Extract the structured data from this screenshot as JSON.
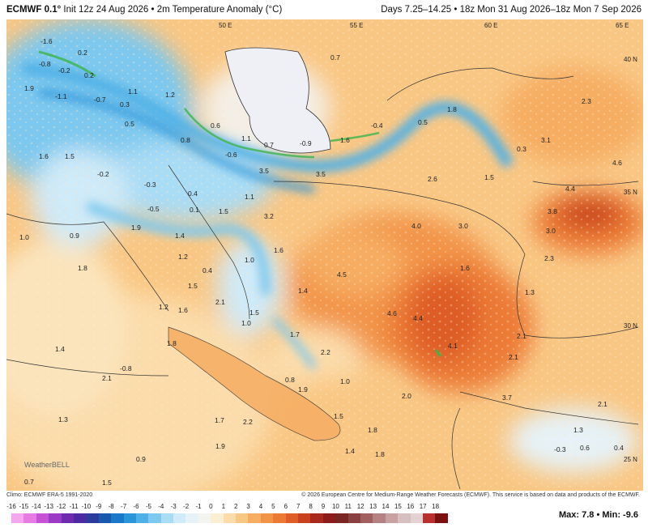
{
  "header": {
    "model": "ECMWF 0.1°",
    "init": "Init 12z 24 Aug 2026 • 2m Temperature Anomaly (°C)",
    "period": "Days 7.25–14.25 • 18z Mon 31 Aug 2026–18z Mon 7 Sep 2026"
  },
  "map": {
    "longitude_labels": [
      "50 E",
      "55 E",
      "60 E",
      "65 E"
    ],
    "latitude_labels": [
      "40 N",
      "35 N",
      "30 N",
      "25 N"
    ],
    "anomaly_values": [
      "-1.6",
      "0.2",
      "-0.2",
      "1.9",
      "-0.8",
      "0.2",
      "-1.1",
      "-0.7",
      "0.3",
      "1.1",
      "0.5",
      "1.2",
      "0.6",
      "1.1",
      "0.7",
      "-0.9",
      "1.6",
      "-0.4",
      "0.5",
      "1.8",
      "2.3",
      "3.1",
      "4.6",
      "4.4",
      "3.8",
      "3.0",
      "2.3",
      "0.3",
      "1.5",
      "2.6",
      "3.5",
      "3.5",
      "-0.6",
      "0.8",
      "1.6",
      "1.5",
      "-0.2",
      "-0.3",
      "-0.5",
      "0.4",
      "0.1",
      "1.5",
      "1.1",
      "3.2",
      "1.9",
      "0.9",
      "1.8",
      "1.4",
      "1.2",
      "0.4",
      "1.0",
      "1.6",
      "1.5",
      "2.1",
      "1.4",
      "1.2",
      "1.6",
      "1.0",
      "1.5",
      "1.7",
      "4.5",
      "4.6",
      "4.4",
      "4.1",
      "2.1",
      "2.2",
      "0.8",
      "1.0",
      "3.7",
      "2.1",
      "1.3",
      "-0.3",
      "0.6",
      "0.4",
      "-0.8",
      "1.4",
      "1.8",
      "2.1",
      "1.3",
      "0.9",
      "1.7",
      "1.9",
      "2.2",
      "2.0",
      "1.9",
      "1.5",
      "1.8",
      "1.4",
      "1.0",
      "0.7",
      "1.5",
      "3.0",
      "4.0",
      "0.7",
      "1.3",
      "2.1",
      "1.8",
      "1.6"
    ],
    "watermark": "WeatherBELL"
  },
  "credits": {
    "climo": "Climo: ECMWF ERA-5 1991-2020",
    "source": "© 2026 European Centre for Medium-Range Weather Forecasts (ECMWF). This service is based on data and products of the ECMWF."
  },
  "legend": {
    "ticks": [
      "-16",
      "-15",
      "-14",
      "-13",
      "-12",
      "-11",
      "-10",
      "-9",
      "-8",
      "-7",
      "-6",
      "-5",
      "-4",
      "-3",
      "-2",
      "-1",
      "0",
      "1",
      "2",
      "3",
      "4",
      "5",
      "6",
      "7",
      "8",
      "9",
      "10",
      "11",
      "12",
      "13",
      "14",
      "15",
      "16",
      "17",
      "18"
    ],
    "colors": [
      "#f4a6f0",
      "#e57be3",
      "#c653d6",
      "#9b3ac4",
      "#6f2bb0",
      "#4c2aa3",
      "#2c3a9c",
      "#1a58b0",
      "#1a78c8",
      "#2b95da",
      "#4fb0e6",
      "#7cc8ef",
      "#a9dcf5",
      "#cfeaf8",
      "#e6f2f7",
      "#f4f4f0",
      "#fbeed2",
      "#fbdcaa",
      "#f9c784",
      "#f6ad62",
      "#f29448",
      "#ec7a35",
      "#de5d28",
      "#c8421f",
      "#a92a1c",
      "#8a1c1c",
      "#7a2424",
      "#8a4040",
      "#a06060",
      "#b48282",
      "#c8a2a2",
      "#d8bebe",
      "#e4d2d2",
      "#b83030",
      "#7a1010"
    ],
    "max_label": "Max: 7.8",
    "min_label": "Min: -9.6"
  }
}
